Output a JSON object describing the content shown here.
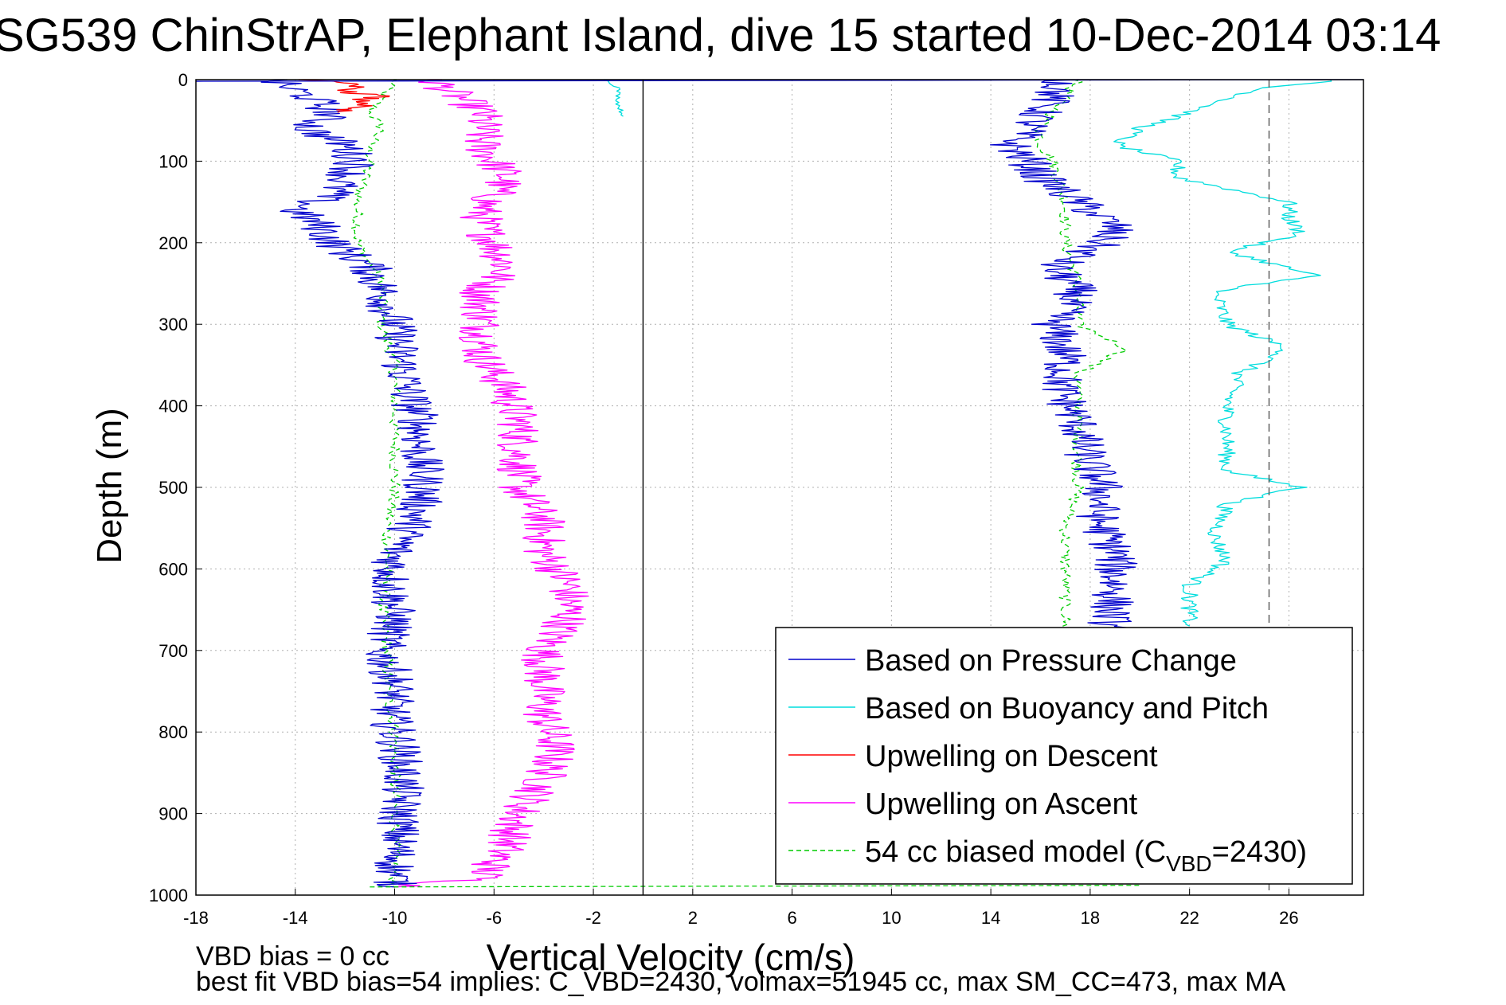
{
  "chart_data": {
    "type": "line",
    "title": "SG539 ChinStrAP, Elephant Island, dive 15 started 10-Dec-2014 03:14",
    "xlabel": "Vertical Velocity (cm/s)",
    "ylabel": "Depth (m)",
    "xlim": [
      -18,
      29
    ],
    "ylim": [
      1000,
      0
    ],
    "y_reversed": true,
    "grid": true,
    "grid_style": "dotted",
    "x_ticks": [
      -18,
      -14,
      -10,
      -6,
      -2,
      2,
      6,
      10,
      14,
      18,
      22,
      26
    ],
    "y_ticks": [
      0,
      100,
      200,
      300,
      400,
      500,
      600,
      700,
      800,
      900,
      1000
    ],
    "legend_position": "bottom-right",
    "footer_lines": [
      "VBD bias = 0 cc",
      "best fit VBD bias=54 implies: C_VBD=2430, volmax=51945 cc, max SM_CC=473, max MA"
    ],
    "series": [
      {
        "name": "Based on Pressure Change",
        "color": "#0000cc",
        "style": "solid",
        "depth": [
          0,
          20,
          40,
          60,
          80,
          100,
          120,
          140,
          160,
          180,
          200,
          230,
          260,
          300,
          340,
          380,
          420,
          460,
          500,
          540,
          580,
          620,
          660,
          700,
          740,
          780,
          820,
          860,
          900,
          940,
          980,
          990
        ],
        "down_velocity": [
          -15,
          -13.5,
          -12.5,
          -13.5,
          -12,
          -11.5,
          -12,
          -12.5,
          -14,
          -13,
          -12.5,
          -11,
          -10.5,
          -10,
          -9.8,
          -9.5,
          -9,
          -9,
          -8.8,
          -9.2,
          -10,
          -10.2,
          -10,
          -10.5,
          -10,
          -10.2,
          -9.8,
          -9.7,
          -9.8,
          -9.9,
          -10,
          -10
        ],
        "up_depth": [
          0,
          20,
          40,
          60,
          80,
          100,
          120,
          140,
          160,
          180,
          200,
          230,
          260,
          300,
          340,
          380,
          420,
          460,
          500,
          540,
          580,
          620,
          660,
          690
        ],
        "up_velocity": [
          17,
          16.5,
          16,
          15.5,
          14.8,
          15.5,
          16,
          17,
          18,
          19,
          18.5,
          16.5,
          17.5,
          16.5,
          17,
          16.8,
          17.5,
          17.8,
          18.5,
          18.3,
          19,
          19,
          18.8,
          18.8
        ]
      },
      {
        "name": "Based on Buoyancy and Pitch",
        "color": "#00dddd",
        "style": "solid",
        "down_depth": [
          0,
          10,
          30,
          45
        ],
        "down_velocity": [
          -1.5,
          -1,
          -1,
          -0.8
        ],
        "up_depth": [
          0,
          10,
          30,
          60,
          80,
          100,
          120,
          150,
          170,
          190,
          210,
          240,
          260,
          300,
          330,
          360,
          400,
          440,
          480,
          500,
          520,
          560,
          590,
          620,
          650,
          670
        ],
        "up_velocity": [
          28,
          25,
          23,
          20,
          19,
          21.5,
          21.5,
          26,
          26,
          26.5,
          23.5,
          27,
          23,
          23.5,
          26,
          24,
          23.5,
          23.5,
          23.5,
          26.5,
          23.5,
          23,
          23.5,
          22,
          22,
          22
        ]
      },
      {
        "name": "Upwelling on Descent",
        "color": "#ff0000",
        "style": "solid",
        "depth": [
          0,
          5,
          10,
          15,
          20,
          25,
          30,
          35,
          40
        ],
        "velocity": [
          -13.5,
          -12,
          -11.5,
          -12,
          -10.5,
          -11.5,
          -11,
          -12,
          -12.3
        ]
      },
      {
        "name": "Upwelling on Ascent",
        "color": "#ff00ff",
        "style": "solid",
        "depth": [
          0,
          20,
          40,
          60,
          80,
          100,
          120,
          140,
          160,
          180,
          200,
          230,
          260,
          300,
          340,
          380,
          420,
          460,
          500,
          540,
          580,
          620,
          660,
          700,
          740,
          780,
          820,
          860,
          900,
          940,
          980,
          990
        ],
        "velocity": [
          -8.5,
          -7.5,
          -6.5,
          -6.5,
          -6.5,
          -6,
          -5.5,
          -6,
          -6.5,
          -6.5,
          -6,
          -5.5,
          -6.5,
          -6.5,
          -6.5,
          -5.5,
          -5,
          -5,
          -5,
          -4,
          -4,
          -3,
          -3,
          -4,
          -4,
          -4,
          -3.5,
          -4,
          -5,
          -5.5,
          -6.5,
          -10
        ]
      },
      {
        "name": "54 cc biased model (C<sub>VBD</sub>=2430)",
        "legend_label": "54 cc biased model (C",
        "legend_sub": "VBD",
        "legend_tail": "=2430)",
        "color": "#00cc00",
        "style": "dashed",
        "down_depth": [
          0,
          20,
          40,
          60,
          80,
          100,
          150,
          200,
          250,
          300,
          350,
          400,
          450,
          500,
          550,
          600,
          650,
          700,
          750,
          800,
          850,
          900,
          950,
          990
        ],
        "down_velocity": [
          -10,
          -10.5,
          -11,
          -10.5,
          -11,
          -11,
          -11.5,
          -11.5,
          -10.5,
          -10.5,
          -10,
          -10,
          -10,
          -10,
          -10.3,
          -10.3,
          -10.5,
          -10.3,
          -10.3,
          -10,
          -10,
          -10,
          -10,
          -10
        ],
        "up_depth": [
          0,
          20,
          40,
          60,
          80,
          100,
          150,
          200,
          250,
          300,
          330,
          360,
          400,
          450,
          500,
          550,
          600,
          650,
          700
        ],
        "up_velocity": [
          17.5,
          17,
          16.5,
          16,
          16,
          16.5,
          17,
          17,
          17.5,
          17.5,
          19.5,
          17.5,
          17.5,
          17.5,
          17.5,
          17,
          17,
          17,
          17
        ]
      }
    ],
    "reference_lines": [
      {
        "orientation": "vertical",
        "x": 0,
        "color": "#000000",
        "style": "solid"
      },
      {
        "orientation": "vertical",
        "x": 25.2,
        "color": "#555555",
        "style": "dashed"
      }
    ]
  }
}
